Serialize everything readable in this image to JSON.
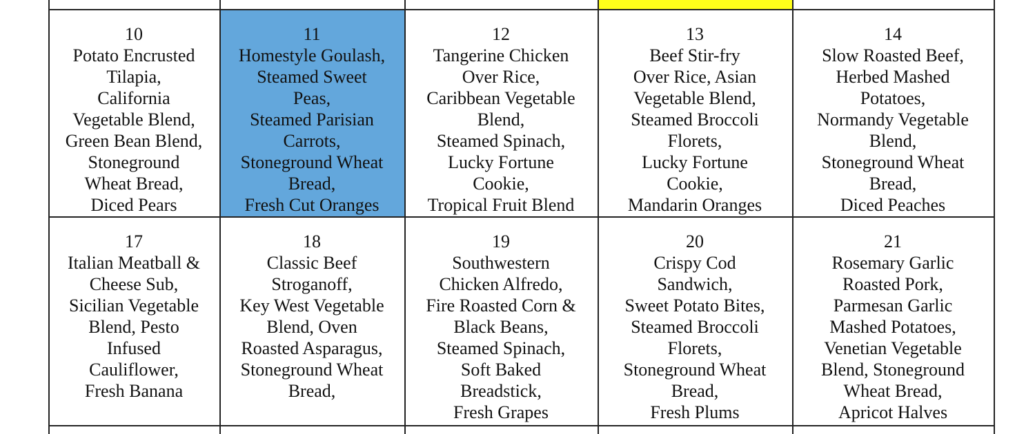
{
  "weeks": [
    [
      {
        "day": "10",
        "lines": [
          "Potato Encrusted",
          "Tilapia,",
          "California",
          "Vegetable Blend,",
          "Green Bean Blend,",
          "Stoneground",
          "Wheat Bread,",
          "Diced Pears"
        ]
      },
      {
        "day": "11",
        "lines": [
          "Homestyle Goulash,",
          "Steamed Sweet",
          "Peas,",
          "Steamed Parisian",
          "Carrots,",
          "Stoneground Wheat",
          "Bread,",
          "Fresh Cut Oranges"
        ]
      },
      {
        "day": "12",
        "lines": [
          "Tangerine Chicken",
          "Over Rice,",
          "Caribbean Vegetable",
          "Blend,",
          "Steamed Spinach,",
          "Lucky Fortune",
          "Cookie,",
          "Tropical Fruit Blend"
        ]
      },
      {
        "day": "13",
        "lines": [
          "Beef Stir-fry",
          "Over Rice, Asian",
          "Vegetable Blend,",
          "Steamed Broccoli",
          "Florets,",
          "Lucky Fortune",
          "Cookie,",
          "Mandarin Oranges"
        ]
      },
      {
        "day": "14",
        "lines": [
          "Slow Roasted Beef,",
          "Herbed Mashed",
          "Potatoes,",
          "Normandy Vegetable",
          "Blend,",
          "Stoneground Wheat",
          "Bread,",
          "Diced Peaches"
        ]
      }
    ],
    [
      {
        "day": "17",
        "lines": [
          "Italian Meatball &",
          "Cheese Sub,",
          "Sicilian Vegetable",
          "Blend, Pesto",
          "Infused",
          "Cauliflower,",
          "Fresh Banana"
        ]
      },
      {
        "day": "18",
        "lines": [
          "Classic Beef",
          "Stroganoff,",
          "Key West Vegetable",
          "Blend, Oven",
          "Roasted Asparagus,",
          "Stoneground Wheat",
          "Bread,"
        ]
      },
      {
        "day": "19",
        "lines": [
          "Southwestern",
          "Chicken Alfredo,",
          "Fire Roasted Corn &",
          "Black Beans,",
          "Steamed Spinach,",
          "Soft Baked",
          "Breadstick,",
          "Fresh Grapes"
        ]
      },
      {
        "day": "20",
        "lines": [
          "Crispy Cod",
          "Sandwich,",
          "Sweet Potato Bites,",
          "Steamed Broccoli",
          "Florets,",
          "Stoneground Wheat",
          "Bread,",
          "Fresh Plums"
        ]
      },
      {
        "day": "21",
        "lines": [
          "Rosemary Garlic",
          "Roasted Pork,",
          "Parmesan Garlic",
          "Mashed Potatoes,",
          "Venetian Vegetable",
          "Blend, Stoneground",
          "Wheat Bread,",
          "Apricot Halves"
        ]
      }
    ]
  ]
}
